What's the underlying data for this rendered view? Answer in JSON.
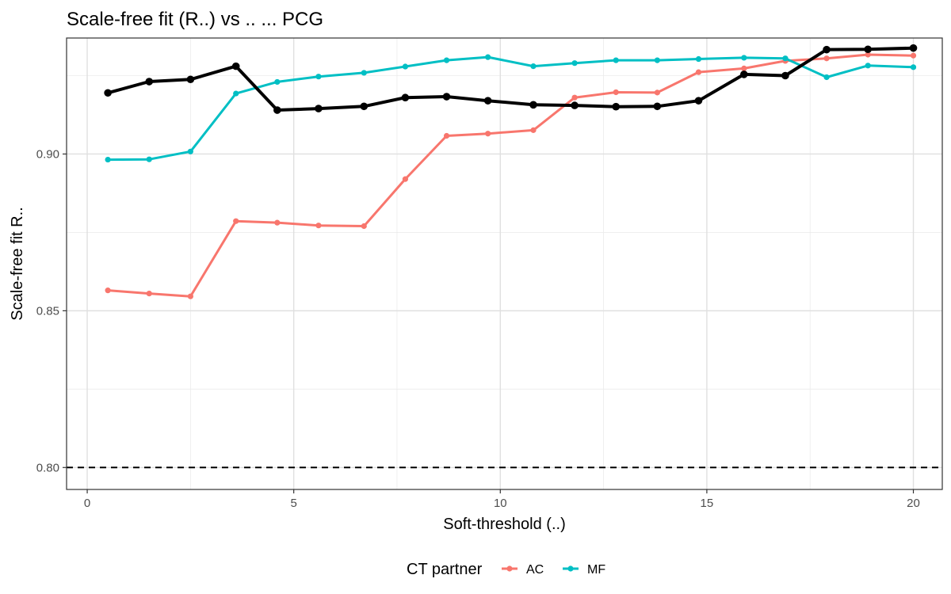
{
  "chart_data": {
    "type": "line",
    "title": "Scale-free fit (R..) vs .. ... PCG",
    "xlabel": "Soft-threshold (..)",
    "ylabel": "Scale-free fit R..",
    "xlim": [
      -0.5,
      20.7
    ],
    "ylim": [
      0.793,
      0.937
    ],
    "x_ticks": [
      0,
      5,
      10,
      15,
      20
    ],
    "x_tick_labels": [
      "0",
      "5",
      "10",
      "15",
      "20"
    ],
    "y_ticks": [
      0.8,
      0.85,
      0.9
    ],
    "y_tick_labels": [
      "0.80",
      "0.85",
      "0.90"
    ],
    "grid": true,
    "reference_line": {
      "y": 0.8,
      "style": "dashed",
      "color": "#000000"
    },
    "legend": {
      "title": "CT partner",
      "position": "bottom"
    },
    "series": [
      {
        "name": "AC",
        "color": "#F8766D",
        "x": [
          0.5,
          1.5,
          2.5,
          3.6,
          4.6,
          5.6,
          6.7,
          7.7,
          8.7,
          9.7,
          10.8,
          11.8,
          12.8,
          13.8,
          14.8,
          15.9,
          16.9,
          17.9,
          18.9,
          20
        ],
        "y": [
          0.8565,
          0.8555,
          0.8546,
          0.8786,
          0.8781,
          0.8772,
          0.877,
          0.892,
          0.9058,
          0.9065,
          0.9076,
          0.918,
          0.9197,
          0.9196,
          0.9261,
          0.9273,
          0.9297,
          0.9305,
          0.9317,
          0.9314
        ]
      },
      {
        "name": "MF",
        "color": "#00BFC4",
        "x": [
          0.5,
          1.5,
          2.5,
          3.6,
          4.6,
          5.6,
          6.7,
          7.7,
          8.7,
          9.7,
          10.8,
          11.8,
          12.8,
          13.8,
          14.8,
          15.9,
          16.9,
          17.9,
          18.9,
          20
        ],
        "y": [
          0.8982,
          0.8983,
          0.9008,
          0.9193,
          0.923,
          0.9247,
          0.9259,
          0.9279,
          0.9299,
          0.9309,
          0.928,
          0.929,
          0.9299,
          0.9299,
          0.9303,
          0.9307,
          0.9305,
          0.9245,
          0.9282,
          0.9277
        ]
      },
      {
        "color": "#000000",
        "bold": true,
        "x": [
          0.5,
          1.5,
          2.5,
          3.6,
          4.6,
          5.6,
          6.7,
          7.7,
          8.7,
          9.7,
          10.8,
          11.8,
          12.8,
          13.8,
          14.8,
          15.9,
          16.9,
          17.9,
          18.9,
          20
        ],
        "y": [
          0.9195,
          0.9231,
          0.9238,
          0.928,
          0.914,
          0.9145,
          0.9152,
          0.918,
          0.9183,
          0.917,
          0.9157,
          0.9155,
          0.9151,
          0.9152,
          0.917,
          0.9254,
          0.925,
          0.9333,
          0.9334,
          0.9338
        ]
      }
    ]
  }
}
